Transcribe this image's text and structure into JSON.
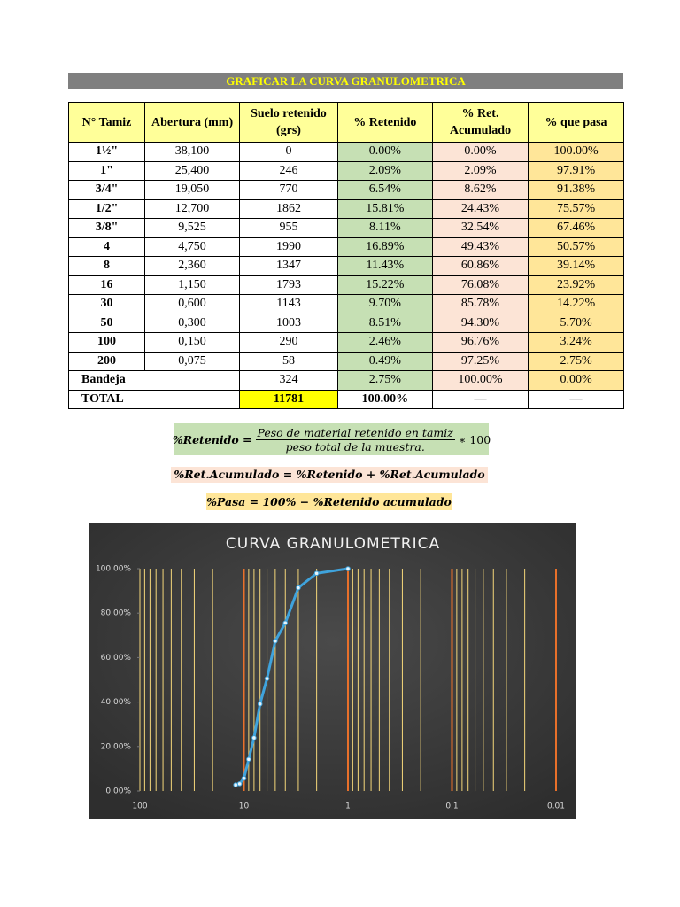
{
  "header": {
    "title": "GRAFICAR LA CURVA GRANULOMETRICA"
  },
  "table": {
    "columns": [
      "N° Tamiz",
      "Abertura (mm)",
      "Suelo retenido (grs)",
      "% Retenido",
      "% Ret. Acumulado",
      "% que pasa"
    ],
    "rows": [
      [
        "1½\"",
        "38,100",
        "0",
        "0.00%",
        "0.00%",
        "100.00%"
      ],
      [
        "1\"",
        "25,400",
        "246",
        "2.09%",
        "2.09%",
        "97.91%"
      ],
      [
        "3/4\"",
        "19,050",
        "770",
        "6.54%",
        "8.62%",
        "91.38%"
      ],
      [
        "1/2\"",
        "12,700",
        "1862",
        "15.81%",
        "24.43%",
        "75.57%"
      ],
      [
        "3/8\"",
        "9,525",
        "955",
        "8.11%",
        "32.54%",
        "67.46%"
      ],
      [
        "4",
        "4,750",
        "1990",
        "16.89%",
        "49.43%",
        "50.57%"
      ],
      [
        "8",
        "2,360",
        "1347",
        "11.43%",
        "60.86%",
        "39.14%"
      ],
      [
        "16",
        "1,150",
        "1793",
        "15.22%",
        "76.08%",
        "23.92%"
      ],
      [
        "30",
        "0,600",
        "1143",
        "9.70%",
        "85.78%",
        "14.22%"
      ],
      [
        "50",
        "0,300",
        "1003",
        "8.51%",
        "94.30%",
        "5.70%"
      ],
      [
        "100",
        "0,150",
        "290",
        "2.46%",
        "96.76%",
        "3.24%"
      ],
      [
        "200",
        "0,075",
        "58",
        "0.49%",
        "97.25%",
        "2.75%"
      ],
      [
        "Bandeja",
        "324",
        "2.75%",
        "100.00%",
        "0.00%"
      ],
      [
        "TOTAL",
        "11781",
        "100.00%",
        "—",
        "—"
      ]
    ]
  },
  "formulas": [
    {
      "lhs": "%Retenido =",
      "numerator": "Peso de material retenido en tamiz",
      "denominator": "peso total de la muestra.",
      "rhs": "∗ 100"
    },
    {
      "text": "%Ret.Acumulado = %Retenido + %Ret.Acumulado"
    },
    {
      "text": "%Pasa = 100% − %Retenido acumulado"
    }
  ],
  "chart_data": {
    "type": "line",
    "title": "CURVA GRANULOMETRICA",
    "x": [
      12,
      11,
      10,
      9,
      8,
      7,
      6,
      5,
      4,
      3,
      2,
      1
    ],
    "values": [
      2.75,
      3.24,
      5.7,
      14.22,
      23.92,
      39.14,
      50.57,
      67.46,
      75.57,
      91.38,
      97.91,
      100
    ],
    "color": "#3fa3dc",
    "xlim": [
      100,
      0.01
    ],
    "xticks": [
      100,
      10,
      1,
      0.1,
      0.01
    ],
    "xlog": true,
    "ylim": [
      0,
      100
    ],
    "yticks": [
      {
        "value": 0,
        "label": "0.00%"
      },
      {
        "value": 20,
        "label": "20.00%"
      },
      {
        "value": 40,
        "label": "40.00%"
      },
      {
        "value": 60,
        "label": "60.00%"
      },
      {
        "value": 80,
        "label": "80.00%"
      },
      {
        "value": 100,
        "label": "100.00%"
      }
    ],
    "grid": true,
    "grid_color": "#f5d77a",
    "major_grid_color": "#e8702a"
  }
}
